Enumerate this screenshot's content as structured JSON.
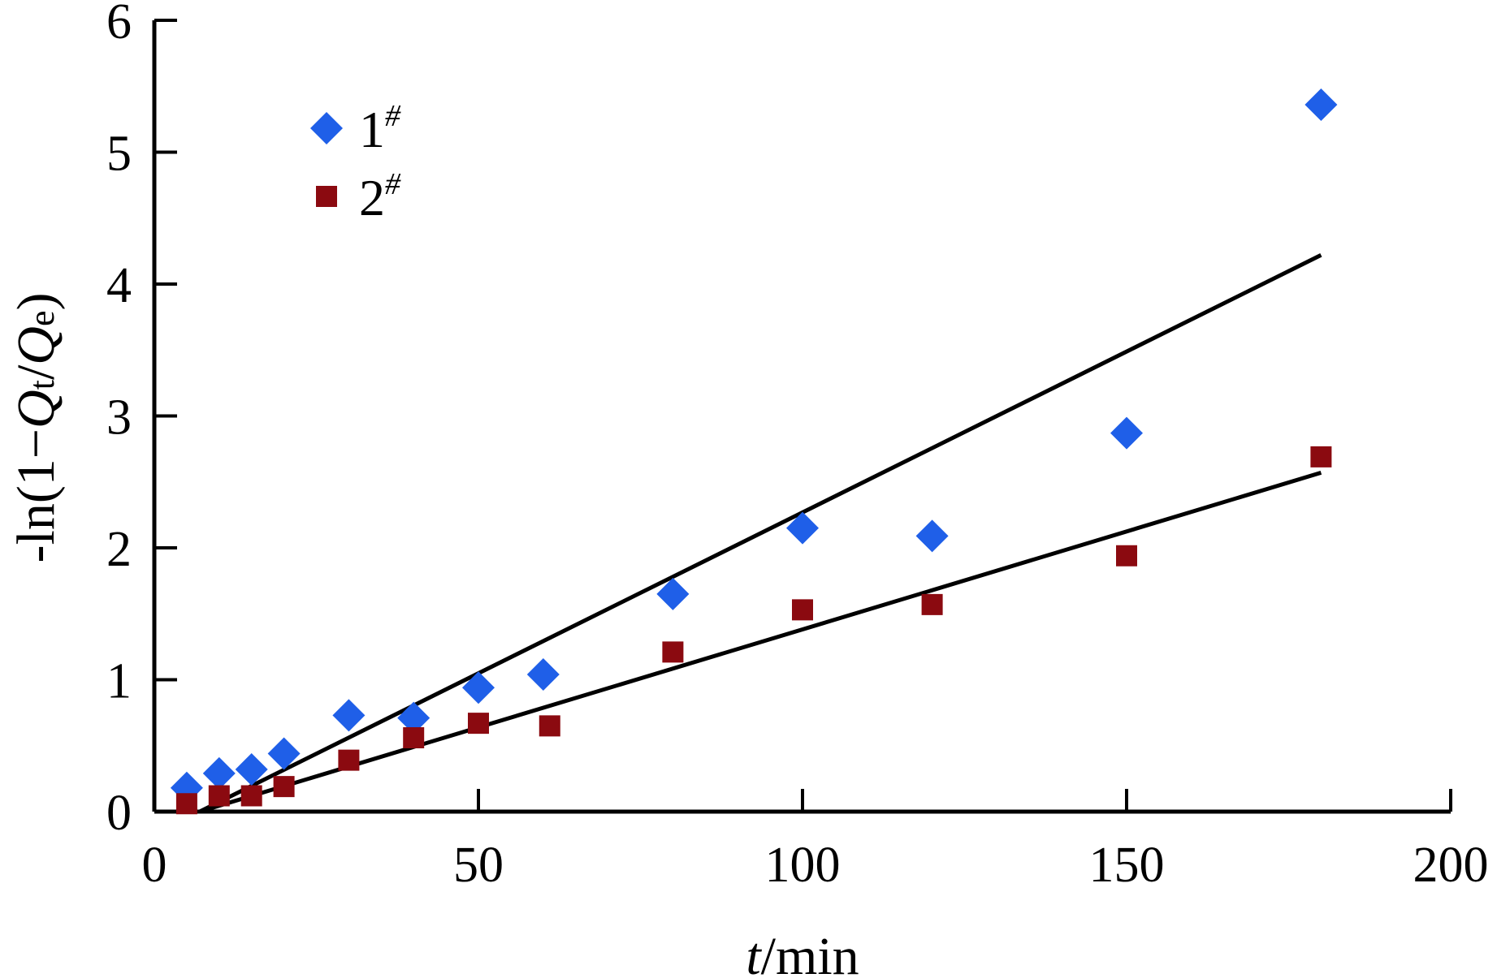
{
  "chart_data": {
    "type": "scatter",
    "xlabel": {
      "var": "t",
      "unit": "/min"
    },
    "ylabel": {
      "prefix": "-ln(1",
      "minus": "−",
      "q1": "Q",
      "sub1": "t",
      "slash": "/",
      "q2": "Q",
      "sub2": "e",
      "suffix": ")"
    },
    "xlim": [
      0,
      200
    ],
    "ylim": [
      0,
      6
    ],
    "xticks": [
      0,
      50,
      100,
      150,
      200
    ],
    "yticks": [
      0,
      1,
      2,
      3,
      4,
      5,
      6
    ],
    "grid": false,
    "legend_position": "top-left",
    "series": [
      {
        "name": "1",
        "name_sup": "#",
        "marker": "diamond",
        "color": "#1f5fe8",
        "x": [
          5,
          10,
          15,
          20,
          30,
          40,
          50,
          60,
          80,
          100,
          120,
          150,
          180
        ],
        "y": [
          0.18,
          0.29,
          0.32,
          0.44,
          0.73,
          0.71,
          0.94,
          1.04,
          1.65,
          2.15,
          2.09,
          2.87,
          5.36
        ],
        "fit": {
          "x": [
            7,
            180
          ],
          "y": [
            0.0,
            4.22
          ]
        }
      },
      {
        "name": "2",
        "name_sup": "#",
        "marker": "square",
        "color": "#8b0a10",
        "x": [
          5,
          10,
          15,
          20,
          30,
          40,
          50,
          61,
          80,
          100,
          120,
          150,
          180
        ],
        "y": [
          0.06,
          0.12,
          0.12,
          0.19,
          0.39,
          0.56,
          0.67,
          0.65,
          1.21,
          1.53,
          1.57,
          1.94,
          2.69
        ],
        "fit": {
          "x": [
            7,
            180
          ],
          "y": [
            0.0,
            2.57
          ]
        }
      }
    ]
  }
}
